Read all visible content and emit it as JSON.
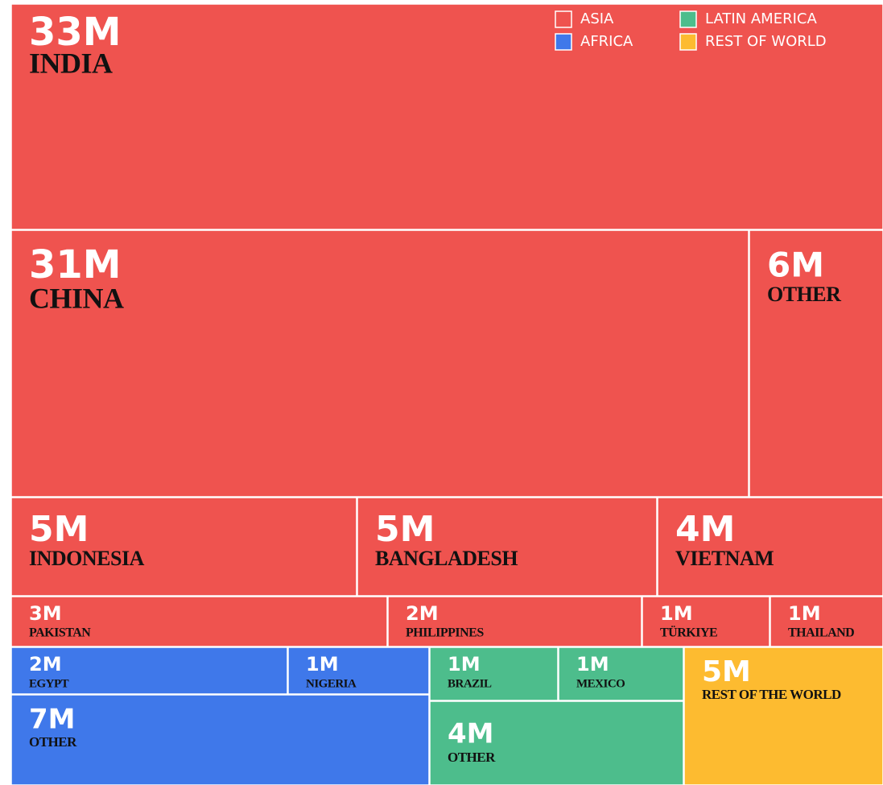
{
  "chart_data": {
    "type": "treemap",
    "series": [
      {
        "name": "ASIA",
        "color": "#ef534f",
        "labels": [
          "INDIA",
          "CHINA",
          "OTHER",
          "INDONESIA",
          "BANGLADESH",
          "VIETNAM",
          "PAKISTAN",
          "PHILIPPINES",
          "TÜRKIYE",
          "THAILAND"
        ],
        "values": [
          33,
          31,
          6,
          5,
          5,
          4,
          3,
          2,
          1,
          1
        ],
        "value_labels": [
          "33M",
          "31M",
          "6M",
          "5M",
          "5M",
          "4M",
          "3M",
          "2M",
          "1M",
          "1M"
        ]
      },
      {
        "name": "AFRICA",
        "color": "#3f78ea",
        "labels": [
          "EGYPT",
          "NIGERIA",
          "OTHER"
        ],
        "values": [
          2,
          1,
          7
        ],
        "value_labels": [
          "2M",
          "1M",
          "7M"
        ]
      },
      {
        "name": "LATIN AMERICA",
        "color": "#4dbd8c",
        "labels": [
          "BRAZIL",
          "MEXICO",
          "OTHER"
        ],
        "values": [
          1,
          1,
          4
        ],
        "value_labels": [
          "1M",
          "1M",
          "4M"
        ]
      },
      {
        "name": "REST OF WORLD",
        "color": "#fdbb30",
        "labels": [
          "REST OF THE WORLD"
        ],
        "values": [
          5
        ],
        "value_labels": [
          "5M"
        ]
      }
    ]
  }
}
